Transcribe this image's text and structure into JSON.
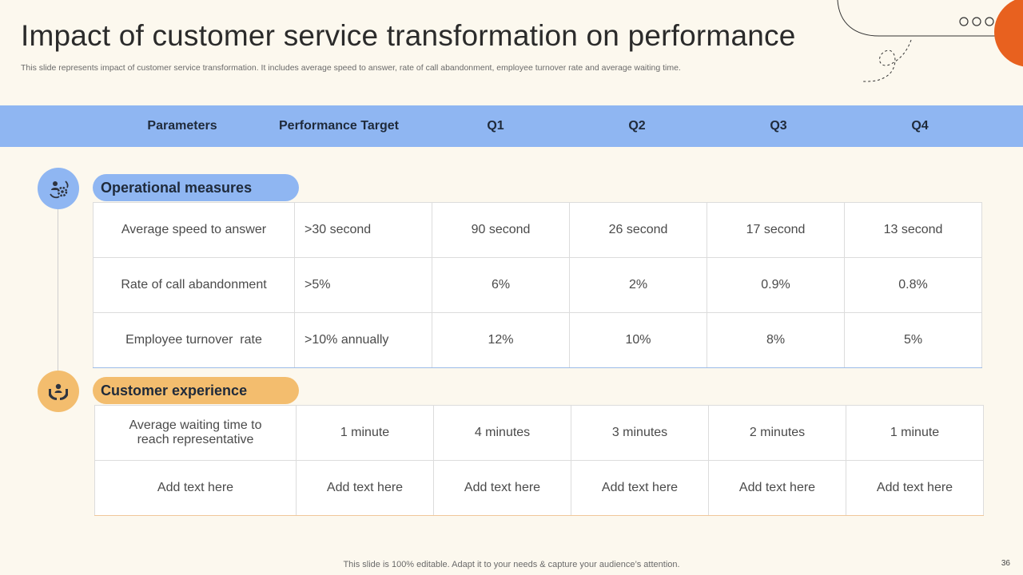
{
  "slide": {
    "title": "Impact of customer service transformation on performance",
    "subtitle": "This slide represents impact of customer service transformation. It includes average speed to answer, rate of call abandonment, employee turnover rate and average waiting time.",
    "footer": "This slide is 100% editable. Adapt it to your needs & capture your audience’s attention.",
    "page_number": "36"
  },
  "colors": {
    "background": "#fcf8ee",
    "header_band": "#8fb6f2",
    "operational_accent": "#8fb6f2",
    "customer_accent": "#f3bd6e",
    "decor_orange": "#e8611f"
  },
  "header": {
    "columns": [
      "Parameters",
      "Performance Target",
      "Q1",
      "Q2",
      "Q3",
      "Q4"
    ]
  },
  "sections": {
    "operational": {
      "label": "Operational measures",
      "icon": "gears-people-icon",
      "rows": [
        [
          "Average speed to answer",
          ">30 second",
          "90 second",
          "26 second",
          "17 second",
          "13 second"
        ],
        [
          "Rate of call abandonment",
          ">5%",
          "6%",
          "2%",
          "0.9%",
          "0.8%"
        ],
        [
          "Employee turnover  rate",
          ">10% annually",
          "12%",
          "10%",
          "8%",
          "5%"
        ]
      ]
    },
    "customer": {
      "label": "Customer experience",
      "icon": "hands-person-icon",
      "rows": [
        [
          "Average waiting time to reach representative",
          "1 minute",
          "4 minutes",
          "3 minutes",
          "2 minutes",
          "1 minute"
        ],
        [
          "Add text here",
          "Add text here",
          "Add text here",
          "Add text here",
          "Add text here",
          "Add text here"
        ]
      ]
    }
  }
}
